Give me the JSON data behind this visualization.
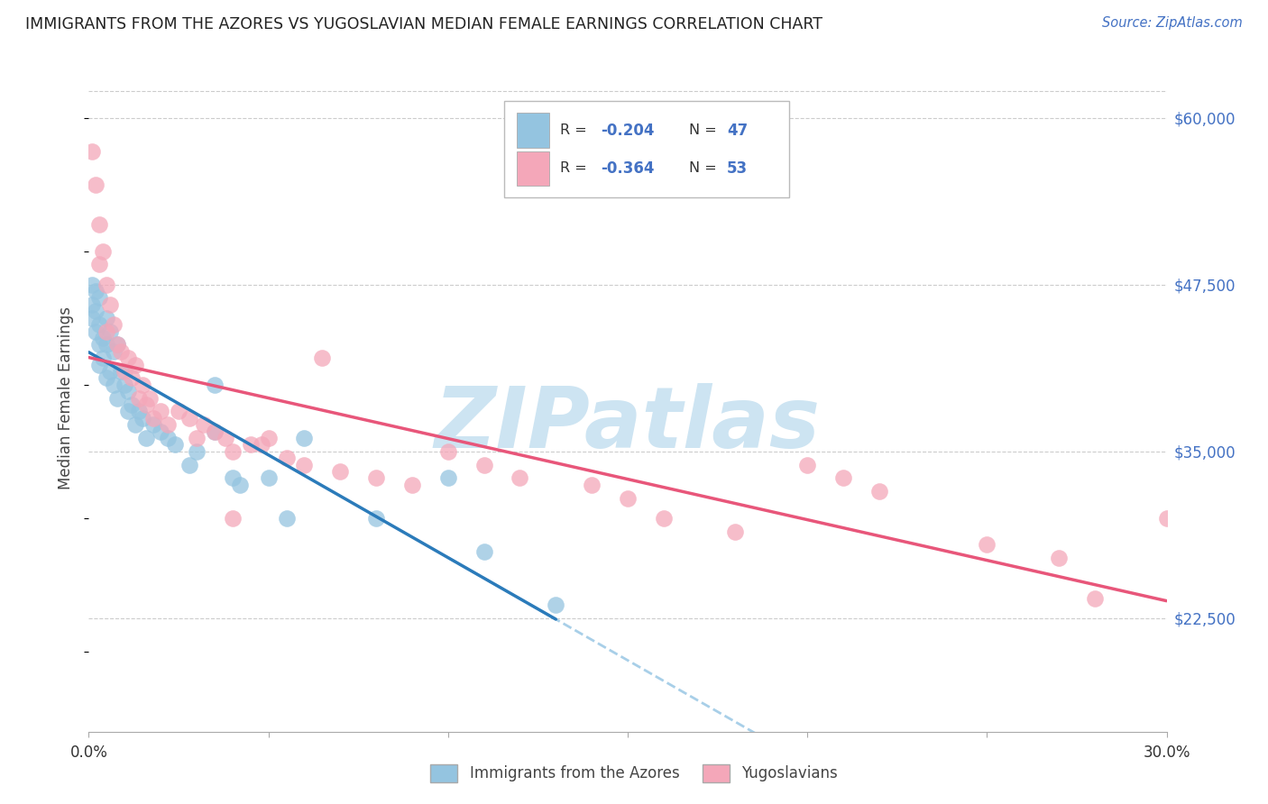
{
  "title": "IMMIGRANTS FROM THE AZORES VS YUGOSLAVIAN MEDIAN FEMALE EARNINGS CORRELATION CHART",
  "source": "Source: ZipAtlas.com",
  "ylabel": "Median Female Earnings",
  "y_ticks": [
    22500,
    35000,
    47500,
    60000
  ],
  "y_tick_labels": [
    "$22,500",
    "$35,000",
    "$47,500",
    "$60,000"
  ],
  "x_min": 0.0,
  "x_max": 0.3,
  "y_min": 14000,
  "y_max": 64000,
  "legend_label1": "Immigrants from the Azores",
  "legend_label2": "Yugoslavians",
  "color_blue": "#94c4e0",
  "color_pink": "#f4a7b9",
  "color_blue_line": "#2b7bba",
  "color_pink_line": "#e8567a",
  "color_dashed": "#a8cfe8",
  "watermark_color": "#cde4f2",
  "r1": "-0.204",
  "n1": "47",
  "r2": "-0.364",
  "n2": "53",
  "azores_x": [
    0.001,
    0.001,
    0.001,
    0.002,
    0.002,
    0.002,
    0.003,
    0.003,
    0.003,
    0.003,
    0.004,
    0.004,
    0.005,
    0.005,
    0.005,
    0.006,
    0.006,
    0.007,
    0.007,
    0.008,
    0.008,
    0.009,
    0.01,
    0.011,
    0.011,
    0.012,
    0.013,
    0.014,
    0.015,
    0.016,
    0.018,
    0.02,
    0.022,
    0.024,
    0.028,
    0.03,
    0.035,
    0.04,
    0.042,
    0.05,
    0.06,
    0.08,
    0.1,
    0.11,
    0.13,
    0.035,
    0.055
  ],
  "azores_y": [
    47500,
    46000,
    45000,
    47000,
    45500,
    44000,
    46500,
    44500,
    43000,
    41500,
    43500,
    42000,
    45000,
    43000,
    40500,
    44000,
    41000,
    42500,
    40000,
    43000,
    39000,
    41000,
    40000,
    39500,
    38000,
    38500,
    37000,
    38000,
    37500,
    36000,
    37000,
    36500,
    36000,
    35500,
    34000,
    35000,
    36500,
    33000,
    32500,
    33000,
    36000,
    30000,
    33000,
    27500,
    23500,
    40000,
    30000
  ],
  "yugoslav_x": [
    0.001,
    0.002,
    0.003,
    0.003,
    0.004,
    0.005,
    0.005,
    0.006,
    0.007,
    0.008,
    0.009,
    0.01,
    0.011,
    0.012,
    0.013,
    0.014,
    0.015,
    0.016,
    0.017,
    0.018,
    0.02,
    0.022,
    0.025,
    0.028,
    0.03,
    0.032,
    0.035,
    0.038,
    0.04,
    0.045,
    0.048,
    0.05,
    0.055,
    0.06,
    0.065,
    0.07,
    0.08,
    0.09,
    0.1,
    0.11,
    0.12,
    0.14,
    0.15,
    0.16,
    0.18,
    0.2,
    0.21,
    0.22,
    0.25,
    0.27,
    0.28,
    0.3,
    0.04
  ],
  "yugoslav_y": [
    57500,
    55000,
    52000,
    49000,
    50000,
    47500,
    44000,
    46000,
    44500,
    43000,
    42500,
    41000,
    42000,
    40500,
    41500,
    39000,
    40000,
    38500,
    39000,
    37500,
    38000,
    37000,
    38000,
    37500,
    36000,
    37000,
    36500,
    36000,
    35000,
    35500,
    35500,
    36000,
    34500,
    34000,
    42000,
    33500,
    33000,
    32500,
    35000,
    34000,
    33000,
    32500,
    31500,
    30000,
    29000,
    34000,
    33000,
    32000,
    28000,
    27000,
    24000,
    30000,
    30000
  ]
}
